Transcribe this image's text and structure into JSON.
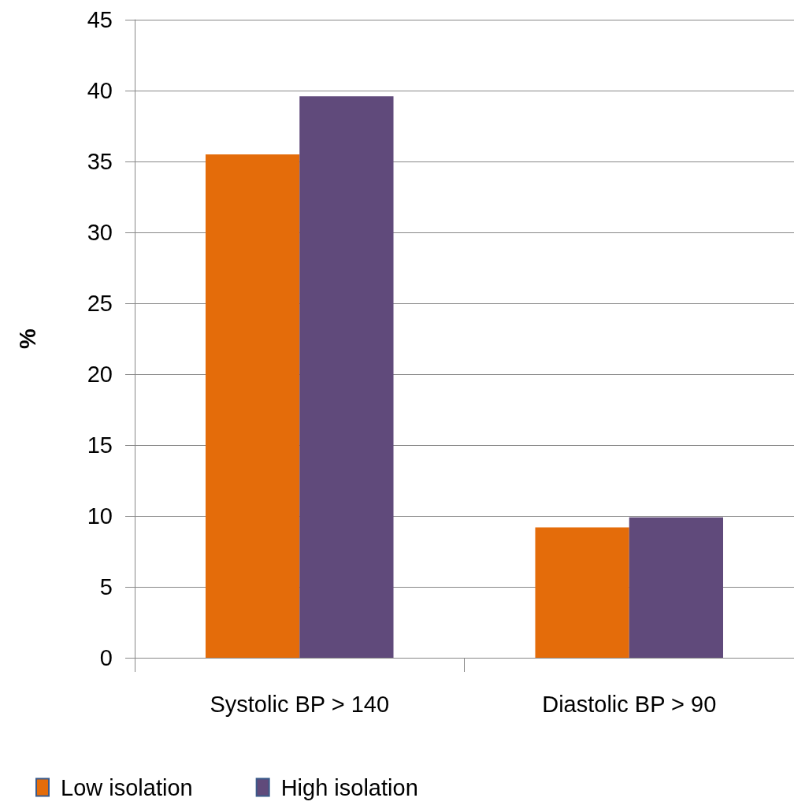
{
  "chart_data": {
    "type": "bar",
    "ylabel": "%",
    "categories": [
      "Systolic BP > 140",
      "Diastolic BP > 90"
    ],
    "series": [
      {
        "name": "Low isolation",
        "color": "#e46c0a",
        "values": [
          35.5,
          9.2
        ]
      },
      {
        "name": "High isolation",
        "color": "#604a7b",
        "values": [
          39.6,
          9.9
        ]
      }
    ],
    "ylim": [
      0,
      45
    ],
    "yticks": [
      0,
      5,
      10,
      15,
      20,
      25,
      30,
      35,
      40,
      45
    ],
    "grid": "y",
    "legend": "bottom left"
  }
}
